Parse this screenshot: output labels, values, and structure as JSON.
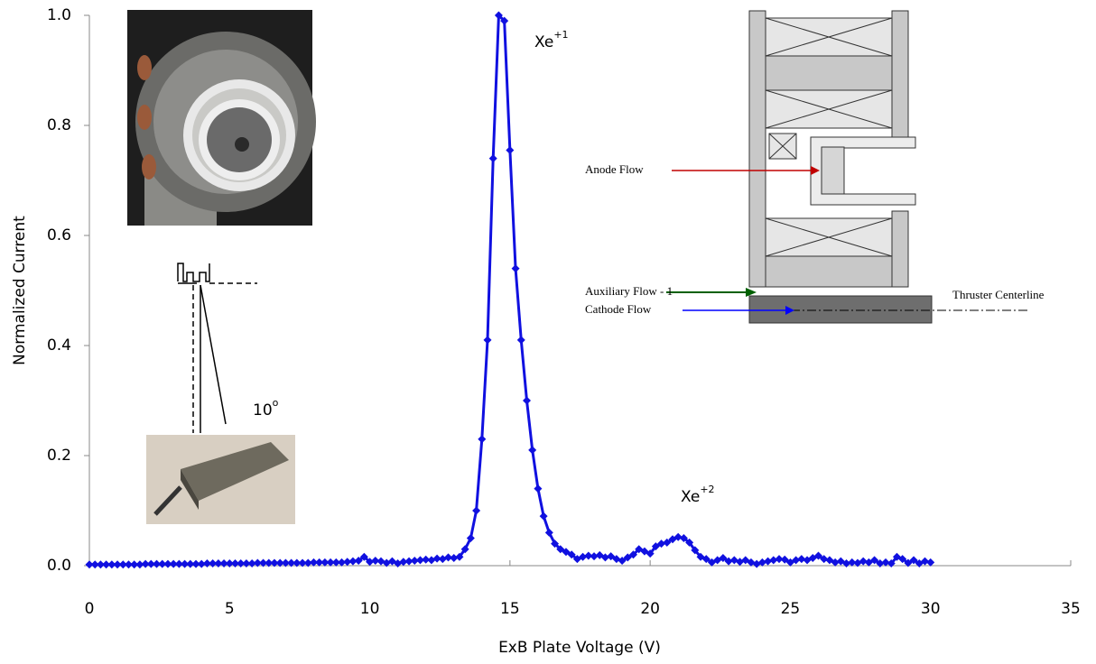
{
  "chart_data": {
    "type": "line",
    "x_label": "ExB Plate Voltage (V)",
    "y_label": "Normalized Current",
    "color": "#1010e0",
    "xlim": [
      0,
      35
    ],
    "xticks": [
      0,
      5,
      10,
      15,
      20,
      25,
      30,
      35
    ],
    "ylim": [
      0,
      1
    ],
    "yticks": [
      {
        "value": 0,
        "label": "0.0"
      },
      0.2,
      0.4,
      0.6,
      0.8,
      {
        "value": 1,
        "label": "1.0"
      }
    ],
    "x": [
      0,
      0.2,
      0.4,
      0.6,
      0.8,
      1,
      1.2,
      1.4,
      1.6,
      1.8,
      2,
      2.2,
      2.4,
      2.6,
      2.8,
      3,
      3.2,
      3.4,
      3.6,
      3.8,
      4,
      4.2,
      4.4,
      4.6,
      4.8,
      5,
      5.2,
      5.4,
      5.6,
      5.8,
      6,
      6.2,
      6.4,
      6.6,
      6.8,
      7,
      7.2,
      7.4,
      7.6,
      7.8,
      8,
      8.2,
      8.4,
      8.6,
      8.8,
      9,
      9.2,
      9.4,
      9.6,
      9.8,
      10,
      10.2,
      10.4,
      10.6,
      10.8,
      11,
      11.2,
      11.4,
      11.6,
      11.8,
      12,
      12.2,
      12.4,
      12.6,
      12.8,
      13,
      13.2,
      13.4,
      13.6,
      13.8,
      14,
      14.2,
      14.4,
      14.6,
      14.8,
      15,
      15.2,
      15.4,
      15.6,
      15.8,
      16,
      16.2,
      16.4,
      16.6,
      16.8,
      17,
      17.2,
      17.4,
      17.6,
      17.8,
      18,
      18.2,
      18.4,
      18.6,
      18.8,
      19,
      19.2,
      19.4,
      19.6,
      19.8,
      20,
      20.2,
      20.4,
      20.6,
      20.8,
      21,
      21.2,
      21.4,
      21.6,
      21.8,
      22,
      22.2,
      22.4,
      22.6,
      22.8,
      23,
      23.2,
      23.4,
      23.6,
      23.8,
      24,
      24.2,
      24.4,
      24.6,
      24.8,
      25,
      25.2,
      25.4,
      25.6,
      25.8,
      26,
      26.2,
      26.4,
      26.6,
      26.8,
      27,
      27.2,
      27.4,
      27.6,
      27.8,
      28,
      28.2,
      28.4,
      28.6,
      28.8,
      29,
      29.2,
      29.4,
      29.6,
      29.8,
      30
    ],
    "values": [
      0.002,
      0.002,
      0.002,
      0.002,
      0.002,
      0.002,
      0.002,
      0.002,
      0.002,
      0.002,
      0.003,
      0.003,
      0.003,
      0.003,
      0.003,
      0.003,
      0.003,
      0.003,
      0.003,
      0.003,
      0.003,
      0.004,
      0.004,
      0.004,
      0.004,
      0.004,
      0.004,
      0.004,
      0.004,
      0.004,
      0.005,
      0.005,
      0.005,
      0.005,
      0.005,
      0.005,
      0.005,
      0.005,
      0.005,
      0.005,
      0.006,
      0.006,
      0.006,
      0.006,
      0.006,
      0.006,
      0.007,
      0.008,
      0.009,
      0.016,
      0.007,
      0.009,
      0.008,
      0.005,
      0.008,
      0.004,
      0.007,
      0.008,
      0.009,
      0.01,
      0.011,
      0.01,
      0.013,
      0.012,
      0.015,
      0.014,
      0.016,
      0.03,
      0.05,
      0.1,
      0.23,
      0.41,
      0.74,
      1.0,
      0.99,
      0.755,
      0.54,
      0.41,
      0.3,
      0.21,
      0.14,
      0.09,
      0.06,
      0.04,
      0.03,
      0.025,
      0.02,
      0.012,
      0.016,
      0.018,
      0.017,
      0.019,
      0.015,
      0.017,
      0.012,
      0.009,
      0.015,
      0.02,
      0.03,
      0.026,
      0.022,
      0.035,
      0.04,
      0.042,
      0.048,
      0.052,
      0.05,
      0.042,
      0.028,
      0.016,
      0.012,
      0.006,
      0.01,
      0.014,
      0.008,
      0.01,
      0.007,
      0.01,
      0.006,
      0.003,
      0.006,
      0.008,
      0.01,
      0.012,
      0.011,
      0.006,
      0.01,
      0.012,
      0.01,
      0.014,
      0.018,
      0.012,
      0.01,
      0.006,
      0.008,
      0.004,
      0.006,
      0.005,
      0.008,
      0.006,
      0.01,
      0.004,
      0.006,
      0.004,
      0.016,
      0.012,
      0.005,
      0.01,
      0.004,
      0.008,
      0.006
    ],
    "annotations": [
      {
        "text": "Xe",
        "sup": "+1",
        "color": "#000000"
      },
      {
        "text": "Xe",
        "sup": "+2",
        "color": "#000000"
      },
      {
        "text": "10",
        "sup": "o",
        "color": "#000000"
      },
      {
        "text": "Anode Flow",
        "color": "#c00000"
      },
      {
        "text": "Auxiliary Flow - 1",
        "color": "#006000"
      },
      {
        "text": "Cathode Flow",
        "color": "#0000ff"
      },
      {
        "text": "Thruster Centerline",
        "color": "#000000"
      }
    ]
  }
}
